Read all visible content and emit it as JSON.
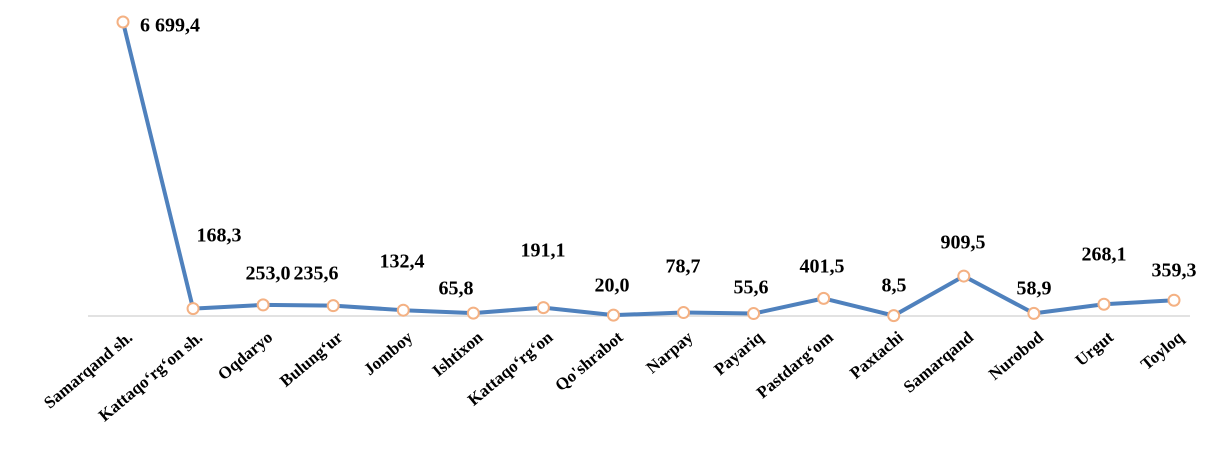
{
  "chart_data": {
    "type": "line",
    "categories": [
      "Samarqand sh.",
      "Kattaqo‘rg‘on sh.",
      "Oqdaryo",
      "Bulung‘ur",
      "Jomboy",
      "Ishtixon",
      "Kattaqo‘rg‘on",
      "Qo'shrabot",
      "Narpay",
      "Payariq",
      "Pastdarg‘om",
      "Paxtachi",
      "Samarqand",
      "Nurobod",
      "Urgut",
      "Toyloq"
    ],
    "series": [
      {
        "name": null,
        "color": "#4f81bd",
        "marker_color": "#f4b183",
        "values": [
          6699.4,
          168.3,
          253.0,
          235.6,
          132.4,
          65.8,
          191.1,
          20.0,
          78.7,
          55.6,
          401.5,
          8.5,
          909.5,
          58.9,
          268.1,
          359.3
        ],
        "value_labels": [
          "6 699,4",
          "168,3",
          "253,0",
          "235,6",
          "132,4",
          "65,8",
          "191,1",
          "20,0",
          "78,7",
          "55,6",
          "401,5",
          "8,5",
          "909,5",
          "58,9",
          "268,1",
          "359,3"
        ]
      }
    ]
  }
}
